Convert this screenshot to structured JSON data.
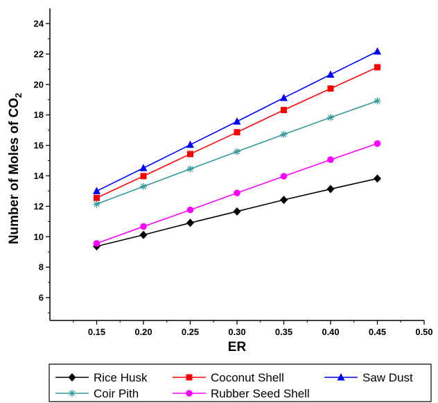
{
  "chart_data": {
    "type": "line",
    "title": "",
    "xlabel": "ER",
    "ylabel": "Number of Moles of CO",
    "ylabel_subscript": "2",
    "xlim": [
      0.1,
      0.5
    ],
    "ylim": [
      4.5,
      25
    ],
    "xticks": [
      "0.15",
      "0.20",
      "0.25",
      "0.30",
      "0.35",
      "0.40",
      "0.45",
      "0.50"
    ],
    "yticks": [
      "6",
      "8",
      "10",
      "12",
      "14",
      "16",
      "18",
      "20",
      "22",
      "24"
    ],
    "grid": false,
    "legend_position": "bottom",
    "x": [
      0.15,
      0.2,
      0.25,
      0.3,
      0.35,
      0.4,
      0.45
    ],
    "series": [
      {
        "name": "Rice Husk",
        "color": "#000000",
        "marker": "diamond",
        "values": [
          9.37,
          10.12,
          10.91,
          11.66,
          12.42,
          13.13,
          13.82
        ]
      },
      {
        "name": "Coconut Shell",
        "color": "#ff0000",
        "marker": "square",
        "values": [
          12.55,
          13.98,
          15.43,
          16.86,
          18.32,
          19.73,
          21.13
        ]
      },
      {
        "name": "Saw Dust",
        "color": "#0000ff",
        "marker": "triangle",
        "values": [
          13.0,
          14.51,
          16.04,
          17.57,
          19.12,
          20.65,
          22.17
        ]
      },
      {
        "name": "Coir Pith",
        "color": "#339999",
        "marker": "asterisk",
        "values": [
          12.14,
          13.3,
          14.45,
          15.59,
          16.72,
          17.83,
          18.92
        ]
      },
      {
        "name": "Rubber Seed Shell",
        "color": "#ff00ff",
        "marker": "circle",
        "values": [
          9.56,
          10.67,
          11.76,
          12.87,
          13.97,
          15.06,
          16.12
        ]
      }
    ]
  }
}
